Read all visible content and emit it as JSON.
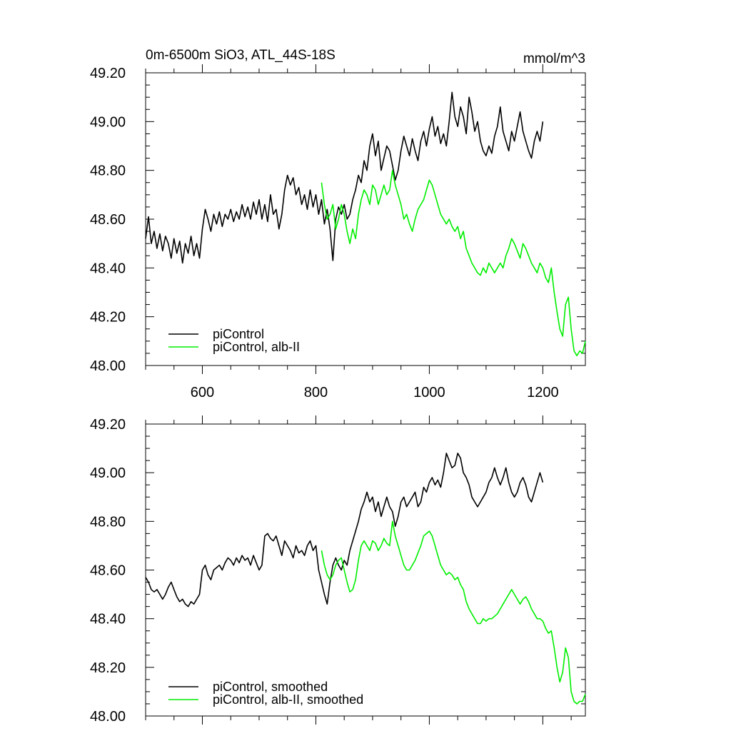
{
  "figure": {
    "title": "0m-6500m SiO3, ATL_44S-18S",
    "units": "mmol/m^3"
  },
  "chart_data": [
    {
      "type": "line",
      "xlim": [
        500,
        1275
      ],
      "ylim": [
        48.0,
        49.2
      ],
      "x_ticks": [
        600,
        800,
        1000,
        1200
      ],
      "x_tick_labels": [
        "600",
        "800",
        "1000",
        "1200"
      ],
      "y_ticks": [
        48.0,
        48.2,
        48.4,
        48.6,
        48.8,
        49.0,
        49.2
      ],
      "y_tick_labels": [
        "48.00",
        "48.20",
        "48.40",
        "48.60",
        "48.80",
        "49.00",
        "49.20"
      ],
      "grid": false,
      "legend_position": "bottom-left",
      "series": [
        {
          "name": "piControl",
          "color": "#000000",
          "x": [
            500,
            505,
            510,
            515,
            520,
            525,
            530,
            535,
            540,
            545,
            550,
            555,
            560,
            565,
            570,
            575,
            580,
            585,
            590,
            595,
            600,
            605,
            610,
            615,
            620,
            625,
            630,
            635,
            640,
            645,
            650,
            655,
            660,
            665,
            670,
            675,
            680,
            685,
            690,
            695,
            700,
            705,
            710,
            715,
            720,
            725,
            730,
            735,
            740,
            745,
            750,
            755,
            760,
            765,
            770,
            775,
            780,
            785,
            790,
            795,
            800,
            805,
            810,
            815,
            820,
            825,
            830,
            835,
            840,
            845,
            850,
            855,
            860,
            865,
            870,
            875,
            880,
            885,
            890,
            895,
            900,
            905,
            910,
            915,
            920,
            925,
            930,
            935,
            940,
            945,
            950,
            955,
            960,
            965,
            970,
            975,
            980,
            985,
            990,
            995,
            1000,
            1005,
            1010,
            1015,
            1020,
            1025,
            1030,
            1035,
            1040,
            1045,
            1050,
            1055,
            1060,
            1065,
            1070,
            1075,
            1080,
            1085,
            1090,
            1095,
            1100,
            1105,
            1110,
            1115,
            1120,
            1125,
            1130,
            1135,
            1140,
            1145,
            1150,
            1155,
            1160,
            1165,
            1170,
            1175,
            1180,
            1185,
            1190,
            1195,
            1200
          ],
          "y": [
            48.52,
            48.61,
            48.5,
            48.55,
            48.48,
            48.54,
            48.47,
            48.53,
            48.5,
            48.44,
            48.52,
            48.46,
            48.51,
            48.42,
            48.5,
            48.46,
            48.53,
            48.45,
            48.5,
            48.44,
            48.56,
            48.64,
            48.6,
            48.55,
            48.62,
            48.58,
            48.63,
            48.57,
            48.62,
            48.6,
            48.64,
            48.59,
            48.63,
            48.6,
            48.66,
            48.61,
            48.65,
            48.6,
            48.67,
            48.62,
            48.68,
            48.6,
            48.66,
            48.59,
            48.7,
            48.62,
            48.64,
            48.56,
            48.62,
            48.72,
            48.78,
            48.74,
            48.77,
            48.7,
            48.73,
            48.66,
            48.7,
            48.64,
            48.72,
            48.65,
            48.7,
            48.62,
            48.68,
            48.58,
            48.64,
            48.56,
            48.43,
            48.6,
            48.65,
            48.62,
            48.66,
            48.6,
            48.62,
            48.68,
            48.72,
            48.78,
            48.75,
            48.84,
            48.8,
            48.9,
            48.95,
            48.86,
            48.92,
            48.8,
            48.85,
            48.9,
            48.88,
            48.82,
            48.76,
            48.8,
            48.88,
            48.94,
            48.9,
            48.86,
            48.93,
            48.88,
            48.84,
            48.92,
            48.96,
            48.9,
            48.97,
            49.02,
            48.94,
            48.98,
            48.91,
            48.95,
            48.9,
            49.0,
            49.12,
            49.02,
            48.98,
            49.06,
            49.02,
            48.95,
            49.1,
            49.04,
            48.96,
            49.0,
            48.92,
            48.88,
            48.86,
            48.9,
            48.87,
            48.94,
            48.98,
            49.06,
            48.96,
            48.92,
            48.88,
            48.96,
            48.92,
            48.98,
            49.04,
            48.96,
            48.92,
            48.88,
            48.85,
            48.92,
            48.96,
            48.92,
            49.0
          ]
        },
        {
          "name": "piControl, alb-II",
          "color": "#00ee00",
          "x": [
            810,
            815,
            820,
            825,
            830,
            835,
            840,
            845,
            850,
            855,
            860,
            865,
            870,
            875,
            880,
            885,
            890,
            895,
            900,
            905,
            910,
            915,
            920,
            925,
            930,
            935,
            940,
            945,
            950,
            955,
            960,
            965,
            970,
            975,
            980,
            985,
            990,
            995,
            1000,
            1005,
            1010,
            1015,
            1020,
            1025,
            1030,
            1035,
            1040,
            1045,
            1050,
            1055,
            1060,
            1065,
            1070,
            1075,
            1080,
            1085,
            1090,
            1095,
            1100,
            1105,
            1110,
            1115,
            1120,
            1125,
            1130,
            1135,
            1140,
            1145,
            1150,
            1155,
            1160,
            1165,
            1170,
            1175,
            1180,
            1185,
            1190,
            1195,
            1200,
            1205,
            1210,
            1215,
            1220,
            1225,
            1230,
            1235,
            1240,
            1245,
            1250,
            1255,
            1260,
            1265,
            1270,
            1275
          ],
          "y": [
            48.75,
            48.66,
            48.6,
            48.62,
            48.66,
            48.56,
            48.6,
            48.66,
            48.62,
            48.55,
            48.5,
            48.56,
            48.52,
            48.62,
            48.68,
            48.72,
            48.7,
            48.66,
            48.74,
            48.72,
            48.66,
            48.7,
            48.74,
            48.7,
            48.72,
            48.8,
            48.74,
            48.7,
            48.66,
            48.6,
            48.62,
            48.58,
            48.55,
            48.6,
            48.64,
            48.66,
            48.68,
            48.72,
            48.76,
            48.74,
            48.7,
            48.66,
            48.62,
            48.6,
            48.58,
            48.6,
            48.57,
            48.55,
            48.57,
            48.52,
            48.55,
            48.48,
            48.45,
            48.42,
            48.4,
            48.38,
            48.37,
            48.4,
            48.38,
            48.42,
            48.4,
            48.38,
            48.4,
            48.42,
            48.4,
            48.45,
            48.48,
            48.52,
            48.5,
            48.47,
            48.44,
            48.5,
            48.48,
            48.45,
            48.42,
            48.4,
            48.38,
            48.42,
            48.4,
            48.36,
            48.34,
            48.4,
            48.3,
            48.22,
            48.15,
            48.12,
            48.25,
            48.28,
            48.15,
            48.06,
            48.04,
            48.06,
            48.05,
            48.1
          ]
        }
      ]
    },
    {
      "type": "line",
      "xlim": [
        500,
        1275
      ],
      "ylim": [
        48.0,
        49.2
      ],
      "y_ticks": [
        48.0,
        48.2,
        48.4,
        48.6,
        48.8,
        49.0,
        49.2
      ],
      "y_tick_labels": [
        "48.00",
        "48.20",
        "48.40",
        "48.60",
        "48.80",
        "49.00",
        "49.20"
      ],
      "grid": false,
      "legend_position": "bottom-left",
      "series": [
        {
          "name": "piControl, smoothed",
          "color": "#000000",
          "x": [
            500,
            505,
            510,
            515,
            520,
            525,
            530,
            535,
            540,
            545,
            550,
            555,
            560,
            565,
            570,
            575,
            580,
            585,
            590,
            595,
            600,
            605,
            610,
            615,
            620,
            625,
            630,
            635,
            640,
            645,
            650,
            655,
            660,
            665,
            670,
            675,
            680,
            685,
            690,
            695,
            700,
            705,
            710,
            715,
            720,
            725,
            730,
            735,
            740,
            745,
            750,
            755,
            760,
            765,
            770,
            775,
            780,
            785,
            790,
            795,
            800,
            805,
            810,
            815,
            820,
            825,
            830,
            835,
            840,
            845,
            850,
            855,
            860,
            865,
            870,
            875,
            880,
            885,
            890,
            895,
            900,
            905,
            910,
            915,
            920,
            925,
            930,
            935,
            940,
            945,
            950,
            955,
            960,
            965,
            970,
            975,
            980,
            985,
            990,
            995,
            1000,
            1005,
            1010,
            1015,
            1020,
            1025,
            1030,
            1035,
            1040,
            1045,
            1050,
            1055,
            1060,
            1065,
            1070,
            1075,
            1080,
            1085,
            1090,
            1095,
            1100,
            1105,
            1110,
            1115,
            1120,
            1125,
            1130,
            1135,
            1140,
            1145,
            1150,
            1155,
            1160,
            1165,
            1170,
            1175,
            1180,
            1185,
            1190,
            1195,
            1200
          ],
          "y": [
            48.57,
            48.55,
            48.52,
            48.51,
            48.52,
            48.5,
            48.48,
            48.5,
            48.53,
            48.55,
            48.52,
            48.49,
            48.47,
            48.48,
            48.46,
            48.45,
            48.47,
            48.46,
            48.48,
            48.5,
            48.6,
            48.62,
            48.58,
            48.56,
            48.6,
            48.61,
            48.62,
            48.6,
            48.63,
            48.65,
            48.64,
            48.62,
            48.65,
            48.63,
            48.66,
            48.64,
            48.65,
            48.62,
            48.66,
            48.63,
            48.6,
            48.62,
            48.74,
            48.75,
            48.73,
            48.72,
            48.74,
            48.7,
            48.66,
            48.72,
            48.7,
            48.68,
            48.65,
            48.7,
            48.67,
            48.68,
            48.66,
            48.7,
            48.72,
            48.68,
            48.7,
            48.6,
            48.55,
            48.5,
            48.46,
            48.55,
            48.62,
            48.65,
            48.62,
            48.6,
            48.64,
            48.62,
            48.68,
            48.72,
            48.76,
            48.8,
            48.85,
            48.88,
            48.92,
            48.88,
            48.9,
            48.84,
            48.88,
            48.82,
            48.86,
            48.9,
            48.86,
            48.84,
            48.78,
            48.82,
            48.88,
            48.9,
            48.86,
            48.88,
            48.9,
            48.92,
            48.86,
            48.88,
            48.94,
            48.92,
            48.96,
            48.98,
            48.95,
            48.97,
            48.94,
            49.0,
            49.08,
            49.05,
            49.02,
            49.03,
            49.08,
            49.06,
            49.0,
            48.98,
            48.95,
            48.9,
            48.88,
            48.86,
            48.88,
            48.9,
            48.92,
            48.96,
            48.98,
            49.02,
            48.98,
            48.95,
            48.98,
            49.02,
            48.96,
            48.92,
            48.9,
            48.92,
            48.96,
            48.98,
            48.95,
            48.9,
            48.88,
            48.92,
            48.96,
            49.0,
            48.96
          ]
        },
        {
          "name": "piControl, alb-II, smoothed",
          "color": "#00ee00",
          "x": [
            810,
            815,
            820,
            825,
            830,
            835,
            840,
            845,
            850,
            855,
            860,
            865,
            870,
            875,
            880,
            885,
            890,
            895,
            900,
            905,
            910,
            915,
            920,
            925,
            930,
            935,
            940,
            945,
            950,
            955,
            960,
            965,
            970,
            975,
            980,
            985,
            990,
            995,
            1000,
            1005,
            1010,
            1015,
            1020,
            1025,
            1030,
            1035,
            1040,
            1045,
            1050,
            1055,
            1060,
            1065,
            1070,
            1075,
            1080,
            1085,
            1090,
            1095,
            1100,
            1105,
            1110,
            1115,
            1120,
            1125,
            1130,
            1135,
            1140,
            1145,
            1150,
            1155,
            1160,
            1165,
            1170,
            1175,
            1180,
            1185,
            1190,
            1195,
            1200,
            1205,
            1210,
            1215,
            1220,
            1225,
            1230,
            1235,
            1240,
            1245,
            1250,
            1255,
            1260,
            1265,
            1270,
            1275
          ],
          "y": [
            48.68,
            48.62,
            48.58,
            48.56,
            48.58,
            48.62,
            48.64,
            48.65,
            48.6,
            48.55,
            48.51,
            48.52,
            48.56,
            48.64,
            48.7,
            48.72,
            48.7,
            48.68,
            48.72,
            48.71,
            48.68,
            48.7,
            48.73,
            48.71,
            48.7,
            48.8,
            48.74,
            48.7,
            48.66,
            48.62,
            48.6,
            48.6,
            48.62,
            48.64,
            48.67,
            48.7,
            48.74,
            48.75,
            48.76,
            48.74,
            48.7,
            48.66,
            48.62,
            48.6,
            48.58,
            48.59,
            48.58,
            48.56,
            48.57,
            48.54,
            48.52,
            48.47,
            48.44,
            48.42,
            48.4,
            48.38,
            48.38,
            48.4,
            48.39,
            48.4,
            48.4,
            48.41,
            48.42,
            48.44,
            48.46,
            48.48,
            48.5,
            48.52,
            48.5,
            48.48,
            48.46,
            48.48,
            48.49,
            48.47,
            48.44,
            48.42,
            48.4,
            48.4,
            48.39,
            48.36,
            48.34,
            48.35,
            48.28,
            48.2,
            48.14,
            48.18,
            48.28,
            48.24,
            48.1,
            48.06,
            48.05,
            48.06,
            48.06,
            48.09
          ]
        }
      ]
    }
  ]
}
